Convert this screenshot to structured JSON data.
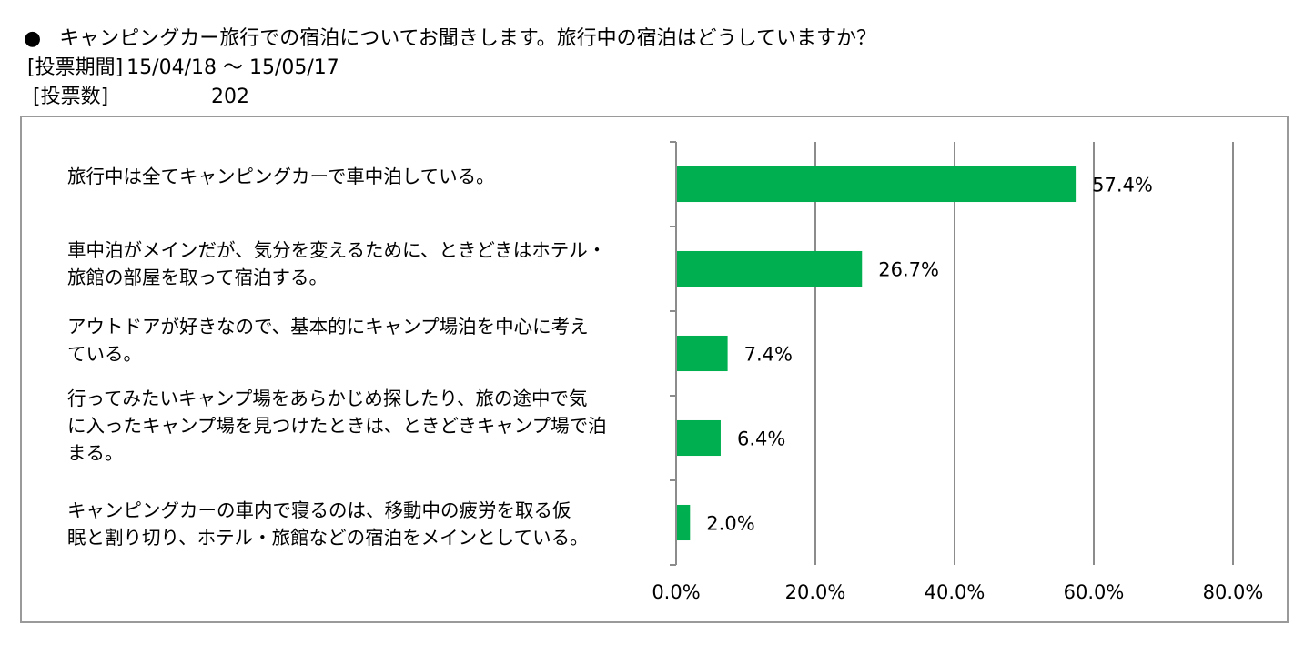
{
  "header": {
    "bullet": "●",
    "question": "キャンピングカー旅行での宿泊についてお聞きします。旅行中の宿泊はどうしていますか？",
    "period_label": "[投票期間]",
    "period_value": "15/04/18 〜 15/05/17",
    "votes_label": "[投票数]",
    "votes_value": "202"
  },
  "chart_data": {
    "type": "bar",
    "orientation": "horizontal",
    "categories": [
      "旅行中は全てキャンピングカーで車中泊している。",
      "車中泊がメインだが、気分を変えるために、ときどきはホテル・\n旅館の部屋を取って宿泊する。",
      "アウトドアが好きなので、基本的にキャンプ場泊を中心に考え\nている。",
      "行ってみたいキャンプ場をあらかじめ探したり、旅の途中で気\nに入ったキャンプ場を見つけたときは、ときどきキャンプ場で泊\nまる。",
      "キャンピングカーの車内で寝るのは、移動中の疲労を取る仮\n眠と割り切り、ホテル・旅館などの宿泊をメインとしている。"
    ],
    "values": [
      57.4,
      26.7,
      7.4,
      6.4,
      2.0
    ],
    "value_labels": [
      "57.4%",
      "26.7%",
      "7.4%",
      "6.4%",
      "2.0%"
    ],
    "xlim": [
      0,
      80
    ],
    "xticks": [
      0,
      20,
      40,
      60,
      80
    ],
    "xtick_labels": [
      "0.0%",
      "20.0%",
      "40.0%",
      "60.0%",
      "80.0%"
    ],
    "bar_color": "#00b050",
    "grid": true,
    "legend": "none"
  }
}
